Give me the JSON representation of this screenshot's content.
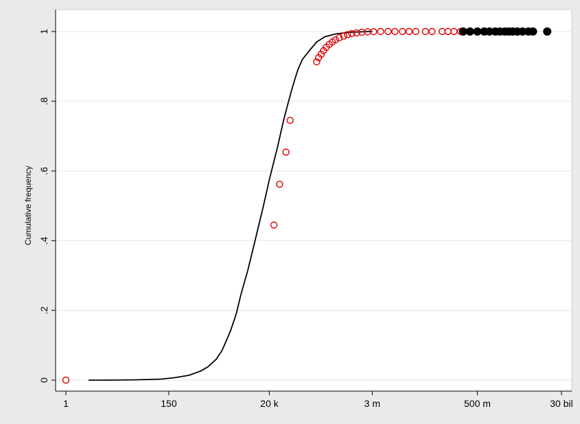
{
  "chart_data": {
    "type": "line",
    "title": "",
    "xlabel": "",
    "ylabel": "Cumulative frequency",
    "x_scale": "log",
    "xlim": [
      1,
      30000000000
    ],
    "ylim": [
      0,
      1
    ],
    "grid": true,
    "legend": "none",
    "x_ticks": [
      {
        "value": 1,
        "label": "1"
      },
      {
        "value": 150,
        "label": "150"
      },
      {
        "value": 20000,
        "label": "20 k"
      },
      {
        "value": 3000000,
        "label": "3 m"
      },
      {
        "value": 500000000,
        "label": "500 m"
      },
      {
        "value": 30000000000,
        "label": "30 bil"
      }
    ],
    "y_ticks": [
      {
        "value": 0,
        "label": "0"
      },
      {
        "value": 0.2,
        "label": ".2"
      },
      {
        "value": 0.4,
        "label": ".4"
      },
      {
        "value": 0.6,
        "label": ".6"
      },
      {
        "value": 0.8,
        "label": ".8"
      },
      {
        "value": 1,
        "label": "1"
      }
    ],
    "series": [
      {
        "style": "line",
        "color": "#000000",
        "x": [
          3,
          10,
          30,
          100,
          200,
          400,
          700,
          1000,
          1500,
          2000,
          3000,
          4000,
          5000,
          7000,
          10000,
          15000,
          20000,
          30000,
          40000,
          50000,
          60000,
          70000,
          80000,
          100000,
          150000,
          200000,
          300000,
          500000,
          1000000,
          3000000
        ],
        "y": [
          0.0,
          0.0002,
          0.001,
          0.003,
          0.007,
          0.014,
          0.026,
          0.038,
          0.06,
          0.085,
          0.14,
          0.19,
          0.245,
          0.315,
          0.4,
          0.5,
          0.575,
          0.67,
          0.745,
          0.795,
          0.835,
          0.865,
          0.89,
          0.92,
          0.95,
          0.97,
          0.985,
          0.993,
          0.998,
          1.0
        ]
      },
      {
        "style": "hollow-circle",
        "color": "#dd0000",
        "x": [
          1,
          25000,
          33000,
          45000,
          55000,
          200000,
          220000,
          250000,
          280000,
          320000,
          370000,
          430000,
          500000,
          600000,
          750000,
          900000,
          1100000,
          1400000,
          1800000,
          2400000,
          3200000,
          4500000,
          6500000,
          9000000,
          13000000,
          18000000,
          25000000,
          40000000,
          55000000,
          90000000,
          120000000,
          160000000,
          220000000
        ],
        "y": [
          0.0,
          0.445,
          0.562,
          0.654,
          0.745,
          0.913,
          0.925,
          0.935,
          0.945,
          0.955,
          0.963,
          0.97,
          0.976,
          0.982,
          0.987,
          0.991,
          0.994,
          0.996,
          0.998,
          0.999,
          0.9995,
          1,
          1,
          1,
          1,
          1,
          1,
          1,
          1,
          1,
          1,
          1,
          1
        ]
      },
      {
        "style": "filled-circle",
        "color": "#000000",
        "x": [
          250000000,
          350000000,
          500000000,
          700000000,
          900000000,
          1200000000,
          1500000000,
          1900000000,
          2300000000,
          2800000000,
          3500000000,
          4500000000,
          6000000000,
          7500000000,
          15000000000
        ],
        "y": [
          1,
          1,
          1,
          1,
          1,
          1,
          1,
          1,
          1,
          1,
          1,
          1,
          1,
          1,
          1
        ]
      }
    ]
  }
}
